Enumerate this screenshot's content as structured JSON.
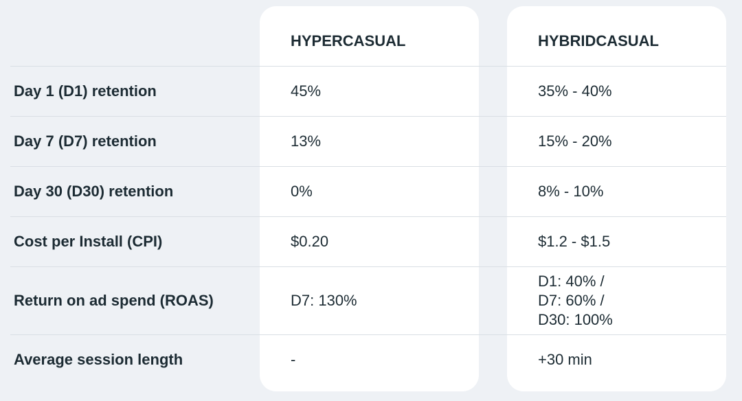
{
  "table": {
    "columns": [
      "HYPERCASUAL",
      "HYBRIDCASUAL"
    ],
    "rows": [
      {
        "label": "Day 1 (D1) retention",
        "values": [
          "45%",
          "35% - 40%"
        ]
      },
      {
        "label": "Day 7 (D7) retention",
        "values": [
          "13%",
          "15% - 20%"
        ]
      },
      {
        "label": "Day 30 (D30) retention",
        "values": [
          "0%",
          "8% - 10%"
        ]
      },
      {
        "label": "Cost per Install (CPI)",
        "values": [
          "$0.20",
          "$1.2 - $1.5"
        ]
      },
      {
        "label": "Return on ad spend (ROAS)",
        "values": [
          "D7: 130%",
          "D1: 40% /\nD7: 60% /\nD30: 100%"
        ]
      },
      {
        "label": "Average session length",
        "values": [
          "-",
          "+30 min"
        ]
      }
    ]
  }
}
